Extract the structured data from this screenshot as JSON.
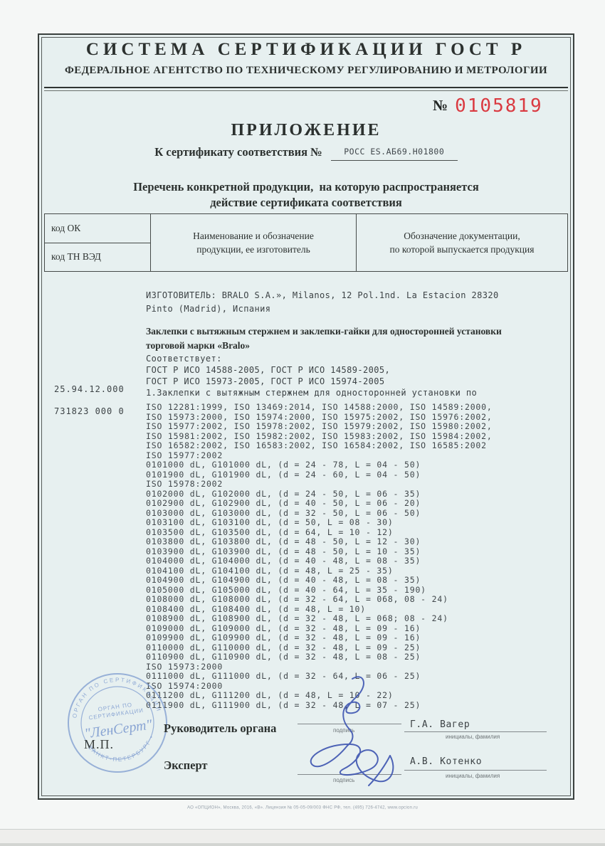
{
  "header": {
    "title": "СИСТЕМА СЕРТИФИКАЦИИ ГОСТ Р",
    "subtitle": "ФЕДЕРАЛЬНОЕ АГЕНТСТВО ПО ТЕХНИЧЕСКОМУ РЕГУЛИРОВАНИЮ И МЕТРОЛОГИИ"
  },
  "number": {
    "label": "№",
    "value": "0105819",
    "color": "#da3a41"
  },
  "doc_title": "ПРИЛОЖЕНИЕ",
  "cert_line": {
    "label": "К сертификату соответствия №",
    "value": "РОСС ES.АБ69.Н01800"
  },
  "subheading_line1": "Перечень конкретной продукции,  на которую распространяется",
  "subheading_line2": "действие сертификата соответствия",
  "table": {
    "col1_row1": "код ОК",
    "col1_row2": "код ТН ВЭД",
    "col2_line1": "Наименование и обозначение",
    "col2_line2": "продукции, ее изготовитель",
    "col3_line1": "Обозначение документации,",
    "col3_line2": "по которой выпускается продукция"
  },
  "codes": {
    "ok_code": "25.94.12.000",
    "tnved_code": "731823 000 0"
  },
  "body": {
    "manufacturer_line1": "ИЗГОТОВИТЕЛЬ: BRALO S.A.», Milanos, 12 Pol.1nd. La Estacion 28320",
    "manufacturer_line2": "Pinto (Madrid), Испания",
    "product_line1": "Заклепки с вытяжным стержнем и заклепки-гайки для односторонней установки",
    "product_line2": "торговой марки «Bralo»",
    "conforms_label": "Соответствует:",
    "gost_line1": "ГОСТ Р ИСО 14588-2005, ГОСТ Р ИСО 14589-2005,",
    "gost_line2": "ГОСТ Р ИСО 15973-2005, ГОСТ Р ИСО 15974-2005",
    "item_line": "1.Заклепки с вытяжным стержнем для односторонней установки по",
    "spec_lines": [
      "ISO 12281:1999, ISO 13469:2014, ISO 14588:2000, ISO 14589:2000,",
      "ISO 15973:2000, ISO 15974:2000, ISO 15975:2002, ISO 15976:2002,",
      "ISO 15977:2002, ISO 15978:2002, ISO 15979:2002, ISO 15980:2002,",
      "ISO 15981:2002, ISO 15982:2002, ISO 15983:2002, ISO 15984:2002,",
      "ISO 16582:2002, ISO 16583:2002, ISO 16584:2002, ISO 16585:2002",
      "ISO 15977:2002",
      "0101000 dL, G101000 dL, (d = 24 - 78, L = 04 - 50)",
      "0101900 dL, G101900 dL, (d = 24 - 60, L = 04 - 50)",
      "ISO 15978:2002",
      "0102000 dL, G102000 dL, (d = 24 - 50, L = 06 - 35)",
      "0102900 dL, G102900 dL, (d = 40 - 50, L = 06 - 20)",
      "0103000 dL, G103000 dL, (d = 32 - 50, L = 06 - 50)",
      "0103100 dL, G103100 dL, (d = 50, L = 08 - 30)",
      "0103500 dL, G103500 dL, (d = 64, L = 10 - 12)",
      "0103800 dL, G103800 dL, (d = 48 - 50, L = 12 - 30)",
      "0103900 dL, G103900 dL, (d = 48 - 50, L = 10 - 35)",
      "0104000 dL, G104000 dL, (d = 40 - 48, L = 08 - 35)",
      "0104100 dL, G104100 dL, (d = 48, L = 25 - 35)",
      "0104900 dL, G104900 dL, (d = 40 - 48, L = 08 - 35)",
      "0105000 dL, G105000 dL, (d = 40 - 64, L = 35 - 190)",
      "0108000 dL, G108000 dL, (d = 32 - 64, L = 068, 08 - 24)",
      "0108400 dL, G108400 dL, (d = 48, L = 10)",
      "0108900 dL, G108900 dL, (d = 32 - 48, L = 068; 08 - 24)",
      "0109000 dL, G109000 dL, (d = 32 - 48, L = 09 - 16)",
      "0109900 dL, G109900 dL, (d = 32 - 48, L = 09 - 16)",
      "0110000 dL, G110000 dL, (d = 32 - 48, L = 09 - 25)",
      "0110900 dL, G110900 dL, (d = 32 - 48, L = 08 - 25)",
      "ISO 15973:2000",
      "0111000 dL, G111000 dL, (d = 32 - 64, L = 06 - 25)",
      "ISO 15974:2000",
      "0111200 dL, G111200 dL, (d = 48, L = 10 - 22)",
      "0111900 dL, G111900 dL, (d = 32 - 48, L = 07 - 25)"
    ]
  },
  "signatures": {
    "row1_label": "Руководитель органа",
    "row1_name": "Г.А. Вагер",
    "row2_label": "Эксперт",
    "row2_name": "А.В. Котенко",
    "sign_caption": "подпись",
    "name_caption": "инициалы, фамилия",
    "mp_label": "М.П."
  },
  "stamp": {
    "ring_top": "ОРГАН ПО СЕРТИФИКАЦИИ",
    "ring_bottom": "• САНКТ-ПЕТЕРБУРГ •",
    "center_line1": "ОРГАН ПО",
    "center_line2": "СЕРТИФИКАЦИИ",
    "name": "\"ЛенСерт\"",
    "color": "#7292cc"
  },
  "footer": "АО «ОПЦИОН», Москва, 2016, «В».  Лицензия № 05-05-09/003 ФНС РФ, тел. (495) 726-4742, www.opcion.ru"
}
